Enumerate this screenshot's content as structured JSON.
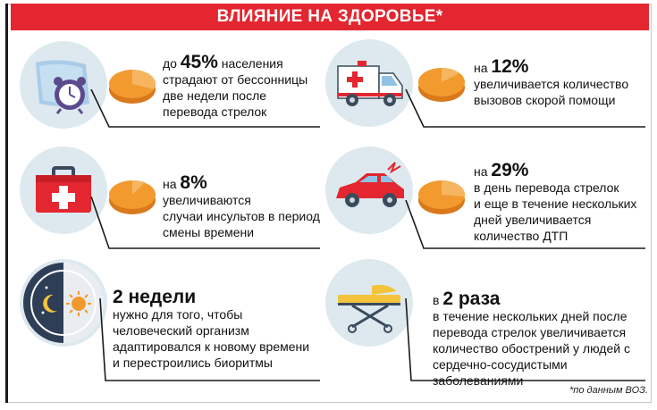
{
  "header": {
    "title": "ВЛИЯНИЕ НА ЗДОРОВЬЕ*"
  },
  "items": [
    {
      "lead": "до ",
      "value": "45%",
      "suffix": " населения",
      "lines": [
        "страдают от бессонницы",
        "две недели после",
        "перевода стрелок"
      ],
      "icon": "alarm-clock-pillow-icon"
    },
    {
      "lead": "на ",
      "value": "12%",
      "suffix": "",
      "lines": [
        "увеличивается количество",
        "вызовов скорой помощи"
      ],
      "icon": "ambulance-icon"
    },
    {
      "lead": "на ",
      "value": "8%",
      "suffix": "",
      "lines": [
        "увеличиваются",
        "случаи инсультов в период",
        "смены времени"
      ],
      "icon": "first-aid-kit-icon"
    },
    {
      "lead": "на ",
      "value": "29%",
      "suffix": "",
      "lines": [
        "в день перевода стрелок",
        "и еще в течение нескольких",
        "дней увеличивается",
        "количество ДТП"
      ],
      "icon": "crashed-car-icon"
    },
    {
      "lead": "",
      "value": "2 недели",
      "suffix": "",
      "lines": [
        "нужно для того, чтобы",
        "человеческий организм",
        "адаптировался к новому времени",
        "и перестроились биоритмы"
      ],
      "icon": "day-night-icon"
    },
    {
      "lead": "в ",
      "value": "2 раза",
      "suffix": "",
      "lines": [
        "в течение нескольких дней после",
        "перевода стрелок увеличивается",
        "количество обострений у людей с",
        "сердечно-сосудистыми заболеваниями"
      ],
      "icon": "stretcher-icon"
    }
  ],
  "footnote": "*по данным ВОЗ.",
  "colors": {
    "header": "#e3262f",
    "pie": "#f29a2e",
    "circle": "#dde9ef"
  }
}
